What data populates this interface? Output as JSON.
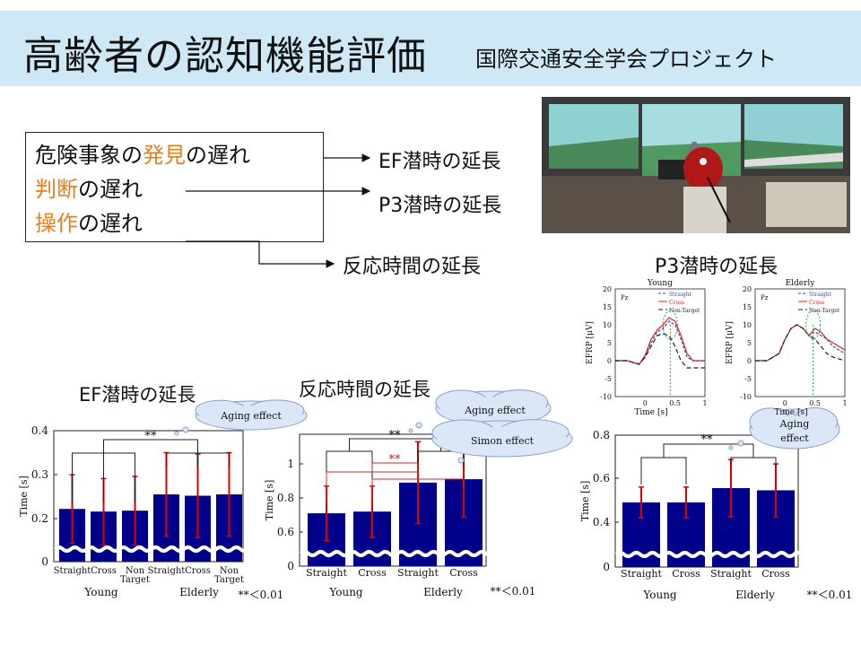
{
  "header": {
    "title": "高齢者の認知機能評価",
    "subtitle": "国際交通安全学会プロジェクト"
  },
  "delays_box": {
    "line1": {
      "orange": "発見",
      "prefix": "危険事象の",
      "suffix": "の遅れ"
    },
    "line2": {
      "orange": "判断",
      "suffix": "の遅れ"
    },
    "line3": {
      "orange": "操作",
      "suffix": "の遅れ"
    }
  },
  "arrow_labels": {
    "ef": "EF潜時の延長",
    "p3": "P3潜時の延長",
    "rt": "反応時間の延長"
  },
  "chart_data": [
    {
      "type": "bar",
      "title": "EF潜時の延長",
      "ylabel": "Time [s]",
      "ylim": [
        0,
        0.4
      ],
      "yticks": [
        "0",
        "0.2",
        "0.3",
        "0.4"
      ],
      "categories": [
        "Straight",
        "Cross",
        "Non Target",
        "Straight",
        "Cross",
        "Non Target"
      ],
      "groups": [
        "Young",
        "Elderly"
      ],
      "values": [
        0.222,
        0.216,
        0.218,
        0.255,
        0.252,
        0.255
      ],
      "errors": [
        0.078,
        0.075,
        0.078,
        0.095,
        0.095,
        0.095
      ],
      "significance": "**",
      "callout": "Aging effect",
      "note": "**＜0.01",
      "bar_color": "#00008b",
      "error_color": "#dd0000"
    },
    {
      "type": "bar",
      "title": "反応時間の延長",
      "ylabel": "Time [s]",
      "ylim": [
        0,
        1
      ],
      "yticks": [
        "0",
        "0.6",
        "0.8",
        "1"
      ],
      "categories": [
        "Straight",
        "Cross",
        "Straight",
        "Cross"
      ],
      "groups": [
        "Young",
        "Elderly"
      ],
      "values": [
        0.71,
        0.72,
        0.89,
        0.91
      ],
      "errors": [
        0.16,
        0.15,
        0.24,
        0.22
      ],
      "significance": [
        "**",
        "**"
      ],
      "callouts": [
        "Aging effect",
        "Simon effect"
      ],
      "note": "**＜0.01",
      "bar_color": "#00008b",
      "error_color": "#dd0000"
    },
    {
      "type": "bar",
      "title": "P3潜時",
      "ylabel": "Time [s]",
      "ylim": [
        0,
        0.8
      ],
      "yticks": [
        "0",
        "0.4",
        "0.6",
        "0.8"
      ],
      "categories": [
        "Straight",
        "Cross",
        "Straight",
        "Cross"
      ],
      "groups": [
        "Young",
        "Elderly"
      ],
      "values": [
        0.49,
        0.49,
        0.555,
        0.545
      ],
      "errors": [
        0.07,
        0.07,
        0.13,
        0.12
      ],
      "significance": "**",
      "callout": "Aging effect",
      "note": "**＜0.01",
      "bar_color": "#00008b",
      "error_color": "#dd0000"
    },
    {
      "type": "line",
      "title": "Young",
      "xlabel": "Time [s]",
      "ylabel": "EFRP [μV]",
      "xlim": [
        -0.5,
        1
      ],
      "ylim": [
        -10,
        20
      ],
      "xticks": [
        "0",
        "0.5",
        "1"
      ],
      "yticks": [
        "-10",
        "-5",
        "0",
        "5",
        "10",
        "15",
        "20"
      ],
      "channel": "Pz",
      "legend": [
        "Straight",
        "Cross",
        "Non-Target"
      ],
      "x": [
        -0.5,
        -0.3,
        -0.1,
        0.0,
        0.1,
        0.2,
        0.3,
        0.4,
        0.5,
        0.6,
        0.7,
        0.8,
        1.0
      ],
      "series": [
        {
          "name": "Straight",
          "values": [
            0,
            0,
            -1,
            1,
            5,
            8,
            9,
            11,
            10,
            6,
            1,
            0,
            0
          ],
          "color": "#3344cc"
        },
        {
          "name": "Cross",
          "values": [
            0,
            0,
            -1,
            1.5,
            6,
            8.5,
            10,
            12,
            11,
            7,
            2,
            0,
            0
          ],
          "color": "#dd2222"
        },
        {
          "name": "Non-Target",
          "values": [
            0,
            0,
            -1,
            1,
            4,
            7,
            7.5,
            7,
            4,
            0,
            -2,
            -2,
            -2
          ],
          "color": "#222222"
        }
      ]
    },
    {
      "type": "line",
      "title": "Elderly",
      "xlabel": "Time [s]",
      "ylabel": "EFRP [μV]",
      "xlim": [
        -0.5,
        1
      ],
      "ylim": [
        -10,
        20
      ],
      "xticks": [
        "0",
        "0.5",
        "1"
      ],
      "yticks": [
        "-10",
        "-5",
        "0",
        "5",
        "10",
        "15",
        "20"
      ],
      "channel": "Pz",
      "legend": [
        "Straight",
        "Cross",
        "Non-Target"
      ],
      "x": [
        -0.5,
        -0.3,
        -0.1,
        0.0,
        0.1,
        0.2,
        0.3,
        0.4,
        0.5,
        0.6,
        0.7,
        0.8,
        1.0
      ],
      "series": [
        {
          "name": "Straight",
          "values": [
            0,
            0,
            2,
            6,
            9,
            10,
            9,
            7,
            8,
            7,
            6,
            4,
            2
          ],
          "color": "#3344cc"
        },
        {
          "name": "Cross",
          "values": [
            0,
            0,
            2,
            6,
            9,
            10,
            9,
            7,
            9,
            8,
            6,
            5,
            3
          ],
          "color": "#dd2222"
        },
        {
          "name": "Non-Target",
          "values": [
            0,
            0,
            2,
            6,
            9,
            10,
            9,
            7,
            6,
            4,
            2,
            1,
            0
          ],
          "color": "#222222"
        }
      ]
    }
  ],
  "p3_section_title": "P3潜時の延長",
  "photo": {
    "description_icon": "driving-simulator-photo"
  }
}
